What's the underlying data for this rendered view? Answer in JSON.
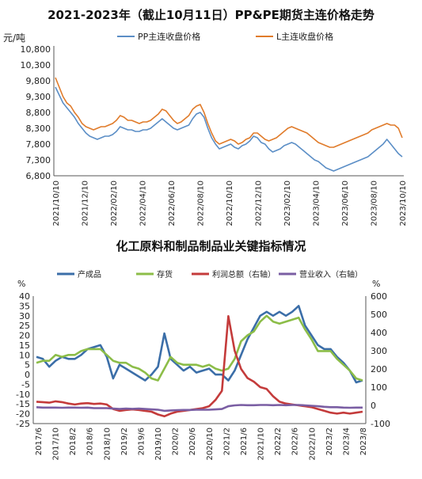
{
  "chart_data": [
    {
      "type": "line",
      "title": "2021-2023年（截止10月11日）PP&PE期货主连价格走势",
      "ylabel": "元/吨",
      "ylim": [
        6800,
        10800
      ],
      "yticks": [
        "10,800",
        "10,300",
        "9,800",
        "9,300",
        "8,800",
        "8,300",
        "7,800",
        "7,300",
        "6,800"
      ],
      "ytick_values": [
        10800,
        10300,
        9800,
        9300,
        8800,
        8300,
        7800,
        7300,
        6800
      ],
      "xticks": [
        "2021/10/10",
        "2021/12/10",
        "2022/02/10",
        "2022/04/10",
        "2022/06/10",
        "2022/08/10",
        "2022/10/10",
        "2022/12/10",
        "2023/02/10",
        "2023/04/10",
        "2023/06/10",
        "2023/08/10",
        "2023/10/10"
      ],
      "grid": false,
      "legend_position": "top",
      "series": [
        {
          "name": "PP主连收盘价格",
          "color": "#5b8ec6",
          "values": [
            9600,
            9350,
            9100,
            8950,
            8800,
            8650,
            8450,
            8300,
            8150,
            8050,
            8000,
            7950,
            8000,
            8050,
            8050,
            8100,
            8200,
            8350,
            8300,
            8250,
            8250,
            8200,
            8200,
            8250,
            8250,
            8300,
            8400,
            8500,
            8600,
            8500,
            8400,
            8300,
            8250,
            8300,
            8350,
            8400,
            8600,
            8750,
            8800,
            8650,
            8300,
            8000,
            7800,
            7650,
            7700,
            7750,
            7800,
            7700,
            7650,
            7750,
            7800,
            7900,
            8050,
            8000,
            7850,
            7800,
            7650,
            7550,
            7600,
            7650,
            7750,
            7800,
            7850,
            7800,
            7700,
            7600,
            7500,
            7400,
            7300,
            7250,
            7150,
            7050,
            7000,
            6950,
            7000,
            7050,
            7100,
            7150,
            7200,
            7250,
            7300,
            7350,
            7400,
            7500,
            7600,
            7700,
            7800,
            7950,
            7800,
            7650,
            7500,
            7400
          ]
        },
        {
          "name": "L主连收盘价格",
          "color": "#e07b2a",
          "values": [
            9900,
            9600,
            9300,
            9100,
            9000,
            8800,
            8650,
            8450,
            8350,
            8300,
            8250,
            8300,
            8350,
            8350,
            8400,
            8450,
            8550,
            8700,
            8650,
            8550,
            8550,
            8500,
            8450,
            8500,
            8500,
            8550,
            8650,
            8750,
            8900,
            8850,
            8700,
            8550,
            8450,
            8500,
            8600,
            8700,
            8900,
            9000,
            9050,
            8800,
            8450,
            8150,
            7900,
            7800,
            7850,
            7900,
            7950,
            7900,
            7800,
            7850,
            7950,
            8000,
            8150,
            8150,
            8050,
            7950,
            7900,
            7950,
            8000,
            8100,
            8200,
            8300,
            8350,
            8300,
            8250,
            8200,
            8150,
            8050,
            7950,
            7850,
            7800,
            7750,
            7700,
            7700,
            7750,
            7800,
            7850,
            7900,
            7950,
            8000,
            8050,
            8100,
            8150,
            8250,
            8300,
            8350,
            8400,
            8450,
            8400,
            8400,
            8300,
            8000
          ]
        }
      ]
    },
    {
      "type": "line",
      "title": "化工原料和制品制品业关键指标情况",
      "ylabel_left": "%",
      "ylabel_right": "%",
      "ylim_left": [
        -25,
        40
      ],
      "ylim_right": [
        -100,
        600
      ],
      "yticks_left": [
        "40",
        "35",
        "30",
        "25",
        "20",
        "15",
        "10",
        "5",
        "0",
        "-5",
        "-10",
        "-15",
        "-20",
        "-25"
      ],
      "ytick_values_left": [
        40,
        35,
        30,
        25,
        20,
        15,
        10,
        5,
        0,
        -5,
        -10,
        -15,
        -20,
        -25
      ],
      "yticks_right": [
        "600",
        "500",
        "400",
        "300",
        "200",
        "100",
        "0",
        "-100"
      ],
      "ytick_values_right": [
        600,
        500,
        400,
        300,
        200,
        100,
        0,
        -100
      ],
      "xticks": [
        "2017/6",
        "2017/10",
        "2018/2",
        "2018/6",
        "2018/10",
        "2019/2",
        "2019/6",
        "2019/10",
        "2020/2",
        "2020/6",
        "2020/10",
        "2021/2",
        "2021/6",
        "2021/10",
        "2022/2",
        "2022/6",
        "2022/10",
        "2023/2",
        "2023/4",
        "2023/8"
      ],
      "grid": false,
      "legend_position": "top",
      "series": [
        {
          "name": "产成品",
          "axis": "left",
          "color": "#3b6ea8",
          "values": [
            9,
            8,
            4,
            7,
            9,
            8,
            8,
            10,
            13,
            14,
            15,
            9,
            -2,
            5,
            3,
            1,
            -1,
            -3,
            0,
            4,
            21,
            8,
            5,
            2,
            4,
            1,
            2,
            3,
            0,
            0,
            -3,
            2,
            10,
            18,
            24,
            30,
            32,
            30,
            32,
            30,
            32,
            35,
            25,
            20,
            15,
            13,
            13,
            9,
            6,
            2,
            -4,
            -3
          ]
        },
        {
          "name": "存货",
          "axis": "left",
          "color": "#8cbd48",
          "values": [
            6,
            7,
            7,
            10,
            9,
            10,
            10,
            12,
            13,
            13,
            13,
            10,
            7,
            6,
            6,
            4,
            3,
            1,
            -2,
            -3,
            3,
            9,
            6,
            5,
            5,
            5,
            4,
            5,
            3,
            2,
            3,
            8,
            17,
            20,
            22,
            27,
            30,
            27,
            26,
            27,
            28,
            29,
            23,
            18,
            12,
            12,
            12,
            8,
            5,
            2,
            -2,
            -3
          ]
        },
        {
          "name": "利润总额（右轴）",
          "axis": "right",
          "color": "#c43b3b",
          "values": [
            20,
            18,
            15,
            22,
            18,
            10,
            5,
            10,
            12,
            8,
            10,
            5,
            -20,
            -30,
            -25,
            -22,
            -25,
            -30,
            -35,
            -50,
            -60,
            -45,
            -35,
            -30,
            -25,
            -20,
            -15,
            -5,
            30,
            80,
            490,
            300,
            200,
            150,
            130,
            100,
            90,
            50,
            20,
            10,
            5,
            0,
            -5,
            -10,
            -20,
            -30,
            -40,
            -45,
            -40,
            -45,
            -40,
            -35
          ]
        },
        {
          "name": "营业收入（右轴）",
          "axis": "right",
          "color": "#7a5ea3",
          "values": [
            -10,
            -12,
            -12,
            -12,
            -13,
            -12,
            -12,
            -13,
            -12,
            -15,
            -15,
            -15,
            -18,
            -20,
            -18,
            -19,
            -18,
            -20,
            -22,
            -24,
            -30,
            -28,
            -26,
            -25,
            -25,
            -24,
            -24,
            -24,
            -22,
            -20,
            -5,
            0,
            2,
            1,
            1,
            2,
            2,
            1,
            2,
            1,
            2,
            2,
            0,
            -2,
            -5,
            -8,
            -10,
            -10,
            -12,
            -13,
            -12,
            -12
          ]
        }
      ]
    }
  ]
}
